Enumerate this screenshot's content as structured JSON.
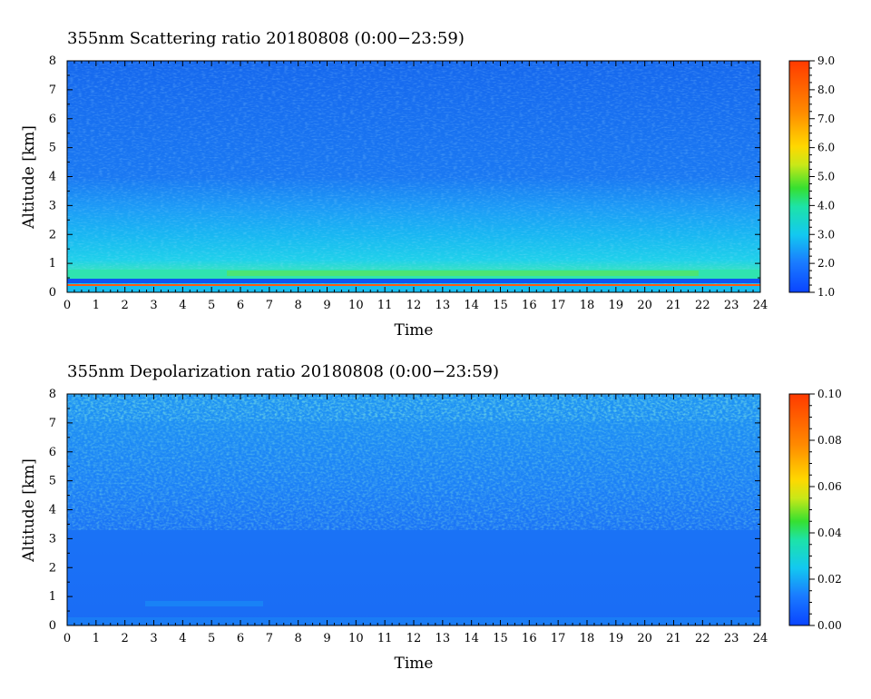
{
  "chart_data": [
    {
      "type": "heatmap",
      "title": "355nm Scattering ratio  20180808 (0:00−23:59)",
      "xlabel": "Time",
      "ylabel": "Altitude [km]",
      "xlim": [
        0,
        24
      ],
      "ylim": [
        0,
        8
      ],
      "x_ticks": [
        "0",
        "1",
        "2",
        "3",
        "4",
        "5",
        "6",
        "7",
        "8",
        "9",
        "10",
        "11",
        "12",
        "13",
        "14",
        "15",
        "16",
        "17",
        "18",
        "19",
        "20",
        "21",
        "22",
        "23",
        "24"
      ],
      "y_ticks": [
        "0",
        "1",
        "2",
        "3",
        "4",
        "5",
        "6",
        "7",
        "8"
      ],
      "colorbar": {
        "range": [
          1.0,
          9.0
        ],
        "ticks": [
          "1.0",
          "2.0",
          "3.0",
          "4.0",
          "5.0",
          "6.0",
          "7.0",
          "8.0",
          "9.0"
        ]
      },
      "features": [
        {
          "altitude_km": 0.25,
          "value": 8.5,
          "note": "thin red line near surface"
        },
        {
          "altitude_km": 0.45,
          "value": 1.0,
          "note": "dark blue band"
        },
        {
          "altitude_km": 0.65,
          "value": 3.5,
          "note": "cyan-green aerosol layer"
        },
        {
          "altitude_km_range": [
            0.8,
            3.0
          ],
          "value": 2.6,
          "note": "boundary layer aerosol"
        },
        {
          "altitude_km_range": [
            3.0,
            8.0
          ],
          "value": 1.6,
          "note": "free troposphere"
        }
      ]
    },
    {
      "type": "heatmap",
      "title": "355nm Depolarization ratio  20180808 (0:00−23:59)",
      "xlabel": "Time",
      "ylabel": "Altitude [km]",
      "xlim": [
        0,
        24
      ],
      "ylim": [
        0,
        8
      ],
      "x_ticks": [
        "0",
        "1",
        "2",
        "3",
        "4",
        "5",
        "6",
        "7",
        "8",
        "9",
        "10",
        "11",
        "12",
        "13",
        "14",
        "15",
        "16",
        "17",
        "18",
        "19",
        "20",
        "21",
        "22",
        "23",
        "24"
      ],
      "y_ticks": [
        "0",
        "1",
        "2",
        "3",
        "4",
        "5",
        "6",
        "7",
        "8"
      ],
      "colorbar": {
        "range": [
          0.0,
          0.1
        ],
        "ticks": [
          "0.00",
          "0.02",
          "0.04",
          "0.06",
          "0.08",
          "0.10"
        ]
      },
      "features": [
        {
          "altitude_km_range": [
            0.0,
            3.0
          ],
          "value": 0.008,
          "note": "low depolarization"
        },
        {
          "altitude_km_range": [
            3.0,
            8.0
          ],
          "value": 0.015,
          "note": "noisy, increasing with altitude"
        }
      ]
    }
  ]
}
